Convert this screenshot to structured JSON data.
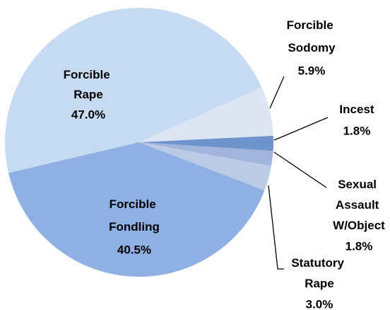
{
  "chart_data": {
    "type": "pie",
    "categories": [
      "Forcible Rape",
      "Forcible Sodomy",
      "Incest",
      "Sexual Assault W/Object",
      "Statutory Rape",
      "Forcible Fondling"
    ],
    "values": [
      47.0,
      5.9,
      1.8,
      1.8,
      3.0,
      40.5
    ],
    "value_labels": [
      "47.0%",
      "5.9%",
      "1.8%",
      "1.8%",
      "3.0%",
      "40.5%"
    ],
    "colors": [
      "#c6dbf2",
      "#dbe5f3",
      "#6f93cd",
      "#a1b5dc",
      "#bccbe5",
      "#8fb0e2"
    ]
  }
}
